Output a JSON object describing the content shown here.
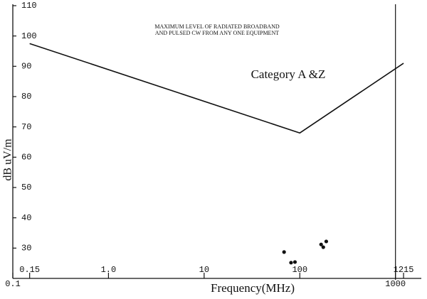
{
  "chart_data": {
    "type": "line",
    "annotation_lines": [
      "MAXIMUM LEVEL OF RADIATED BROADBAND",
      "AND PULSED CW FROM ANY ONE EQUIPMENT"
    ],
    "category_label": "Category A &Z",
    "xlabel": "Frequency(MHz)",
    "ylabel": "dB uV/m",
    "xscale": "log",
    "xlim": [
      0.1,
      1800
    ],
    "ylim": [
      20,
      110
    ],
    "xticks": [
      0.1,
      0.15,
      {
        "value": 1,
        "label": "1.0"
      },
      10,
      100,
      1000,
      1215
    ],
    "yticks": [
      30,
      40,
      50,
      60,
      70,
      80,
      90,
      100,
      110
    ],
    "vline": 1000,
    "color": "#111111",
    "series": [
      {
        "x": [
          0.15,
          100,
          1215
        ],
        "values": [
          97.5,
          68,
          91
        ]
      }
    ],
    "points": {
      "x": [
        68.5,
        81,
        89,
        167,
        176,
        189
      ],
      "values": [
        28.7,
        25.2,
        25.4,
        31.2,
        30.3,
        32.2
      ]
    }
  }
}
